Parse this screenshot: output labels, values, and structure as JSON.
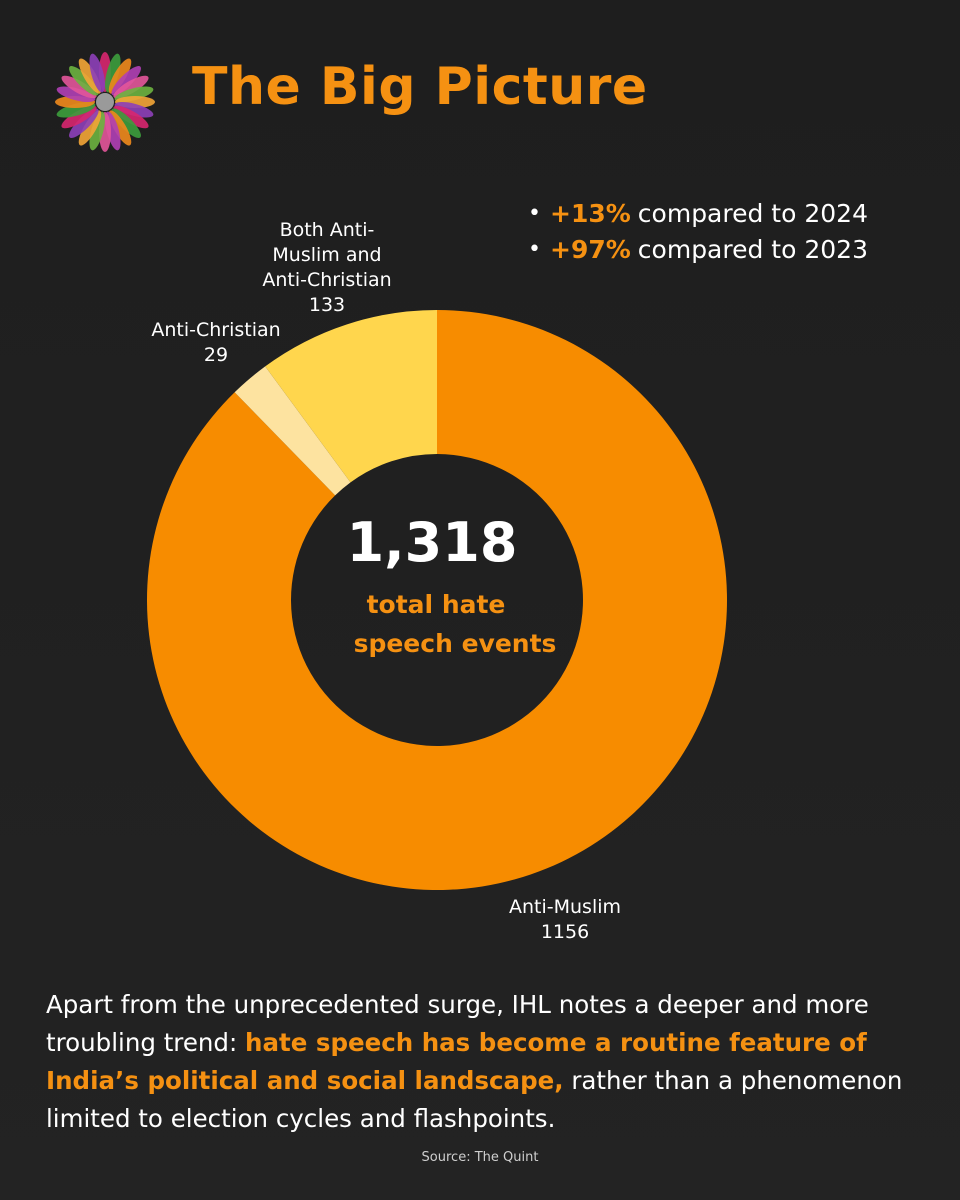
{
  "header": {
    "title": "The Big Picture",
    "logo_icon": "flower-logo-icon"
  },
  "stats": [
    {
      "value": "+13%",
      "text": "compared to 2024"
    },
    {
      "value": "+97%",
      "text": "compared to 2023"
    }
  ],
  "center": {
    "total": "1,318",
    "caption_line1": "total hate",
    "caption_line2": "speech events"
  },
  "chart_data": {
    "type": "pie",
    "donut": true,
    "total": 1318,
    "slices": [
      {
        "label": "Anti-Muslim",
        "value": 1156,
        "color": "#f78c00"
      },
      {
        "label": "Anti-Christian",
        "value": 29,
        "color": "#fde3a0"
      },
      {
        "label": "Both Anti-Muslim and Anti-Christian",
        "value": 133,
        "color": "#ffd64d"
      }
    ],
    "slice_labels": [
      {
        "lines": [
          "Anti-Muslim",
          "1156"
        ]
      },
      {
        "lines": [
          "Anti-Christian",
          "29"
        ]
      },
      {
        "lines": [
          "Both Anti-",
          "Muslim and",
          "Anti-Christian",
          "133"
        ]
      }
    ]
  },
  "caption": {
    "before": "Apart from the unprecedented surge, IHL notes a deeper and more troubling trend: ",
    "highlight": "hate speech has become a routine feature of India’s political and social landscape,",
    "after": " rather than a phenomenon limited to election cycles and flashpoints."
  },
  "source": "Source: The Quint",
  "colors": {
    "background": "#1f1f1f",
    "accent": "#f59112",
    "text": "#ffffff"
  }
}
